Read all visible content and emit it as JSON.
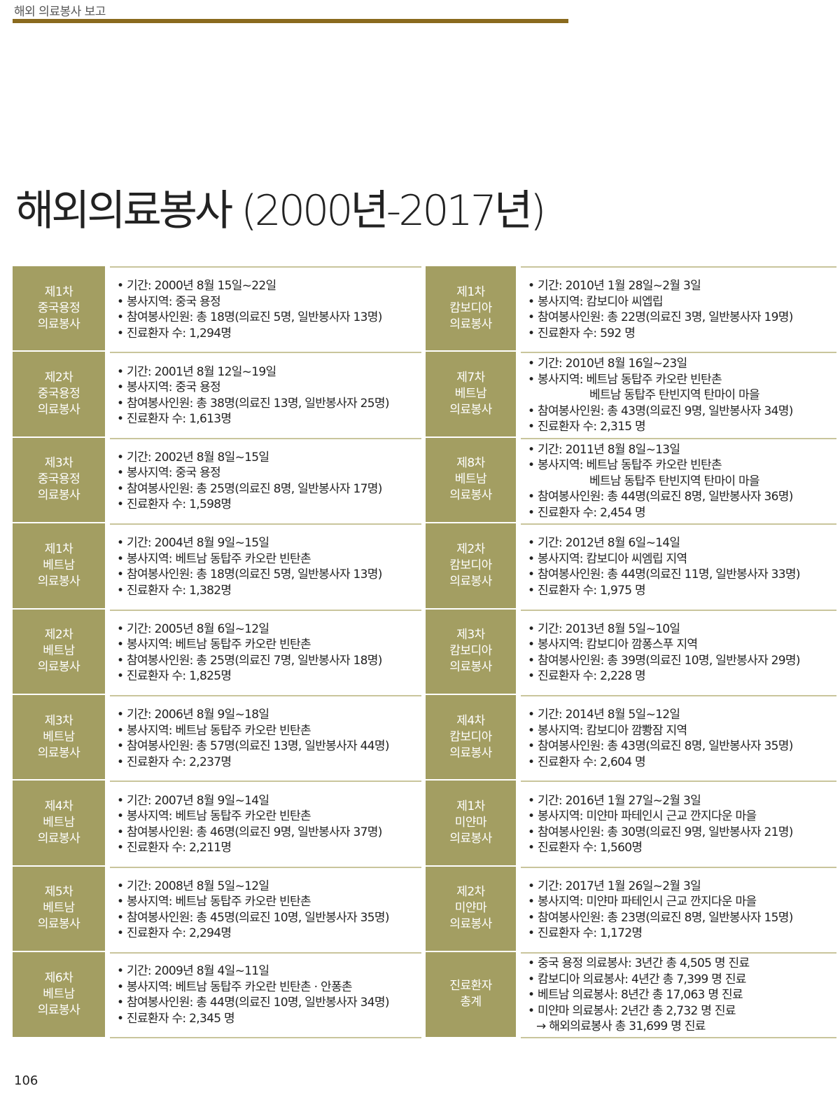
{
  "running_header": "해외 의료봉사 보고",
  "title": "해외의료봉사 (2000년-2017년)",
  "colors": {
    "label_bg": "#a39e62",
    "header_rule": "#8a6a1e",
    "row_rule": "#c9c59c"
  },
  "left": [
    {
      "label": [
        "제1차",
        "중국용정",
        "의료봉사"
      ],
      "lines": [
        {
          "t": "기간: 2000년 8월 15일~22일",
          "k": "b"
        },
        {
          "t": "봉사지역: 중국 용정",
          "k": "b"
        },
        {
          "t": "참여봉사인원: 총 18명(의료진 5명, 일반봉사자 13명)",
          "k": "b"
        },
        {
          "t": "진료환자 수: 1,294명",
          "k": "b"
        }
      ]
    },
    {
      "label": [
        "제2차",
        "중국용정",
        "의료봉사"
      ],
      "lines": [
        {
          "t": "기간: 2001년 8월 12일~19일",
          "k": "b"
        },
        {
          "t": "봉사지역: 중국 용정",
          "k": "b"
        },
        {
          "t": "참여봉사인원: 총 38명(의료진 13명, 일반봉사자 25명)",
          "k": "b"
        },
        {
          "t": "진료환자 수: 1,613명",
          "k": "b"
        }
      ]
    },
    {
      "label": [
        "제3차",
        "중국용정",
        "의료봉사"
      ],
      "lines": [
        {
          "t": "기간: 2002년 8월 8일~15일",
          "k": "b"
        },
        {
          "t": "봉사지역: 중국 용정",
          "k": "b"
        },
        {
          "t": "참여봉사인원: 총 25명(의료진 8명, 일반봉사자 17명)",
          "k": "b"
        },
        {
          "t": "진료환자 수: 1,598명",
          "k": "b"
        }
      ]
    },
    {
      "label": [
        "제1차",
        "베트남",
        "의료봉사"
      ],
      "lines": [
        {
          "t": "기간: 2004년 8월 9일~15일",
          "k": "b"
        },
        {
          "t": "봉사지역: 베트남 동탑주 카오란 빈탄촌",
          "k": "b"
        },
        {
          "t": "참여봉사인원: 총 18명(의료진 5명, 일반봉사자 13명)",
          "k": "b"
        },
        {
          "t": "진료환자 수: 1,382명",
          "k": "b"
        }
      ]
    },
    {
      "label": [
        "제2차",
        "베트남",
        "의료봉사"
      ],
      "lines": [
        {
          "t": "기간: 2005년 8월 6일~12일",
          "k": "b"
        },
        {
          "t": "봉사지역: 베트남 동탑주 카오란 빈탄촌",
          "k": "b"
        },
        {
          "t": "참여봉사인원: 총 25명(의료진 7명, 일반봉사자 18명)",
          "k": "b"
        },
        {
          "t": "진료환자 수: 1,825명",
          "k": "b"
        }
      ]
    },
    {
      "label": [
        "제3차",
        "베트남",
        "의료봉사"
      ],
      "lines": [
        {
          "t": "기간: 2006년 8월 9일~18일",
          "k": "b"
        },
        {
          "t": "봉사지역: 베트남 동탑주 카오란 빈탄촌",
          "k": "b"
        },
        {
          "t": "참여봉사인원: 총 57명(의료진 13명, 일반봉사자 44명)",
          "k": "b"
        },
        {
          "t": "진료환자 수: 2,237명",
          "k": "b"
        }
      ]
    },
    {
      "label": [
        "제4차",
        "베트남",
        "의료봉사"
      ],
      "lines": [
        {
          "t": "기간: 2007년 8월 9일~14일",
          "k": "b"
        },
        {
          "t": "봉사지역: 베트남 동탑주 카오란 빈탄촌",
          "k": "b"
        },
        {
          "t": "참여봉사인원: 총 46명(의료진 9명, 일반봉사자 37명)",
          "k": "b"
        },
        {
          "t": "진료환자 수: 2,211명",
          "k": "b"
        }
      ]
    },
    {
      "label": [
        "제5차",
        "베트남",
        "의료봉사"
      ],
      "lines": [
        {
          "t": "기간: 2008년 8월 5일~12일",
          "k": "b"
        },
        {
          "t": "봉사지역: 베트남 동탑주 카오란 빈탄촌",
          "k": "b"
        },
        {
          "t": "참여봉사인원: 총 45명(의료진 10명, 일반봉사자 35명)",
          "k": "b"
        },
        {
          "t": "진료환자 수: 2,294명",
          "k": "b"
        }
      ]
    },
    {
      "label": [
        "제6차",
        "베트남",
        "의료봉사"
      ],
      "lines": [
        {
          "t": "기간: 2009년 8월 4일~11일",
          "k": "b"
        },
        {
          "t": "봉사지역: 베트남 동탑주 카오란 빈탄촌 · 안퐁촌",
          "k": "b"
        },
        {
          "t": "참여봉사인원: 총 44명(의료진 10명, 일반봉사자 34명)",
          "k": "b"
        },
        {
          "t": "진료환자 수: 2,345 명",
          "k": "b"
        }
      ]
    }
  ],
  "right": [
    {
      "label": [
        "제1차",
        "캄보디아",
        "의료봉사"
      ],
      "lines": [
        {
          "t": "기간: 2010년 1월 28일~2월 3일",
          "k": "b"
        },
        {
          "t": "봉사지역: 캄보디아 씨엡립",
          "k": "b"
        },
        {
          "t": "참여봉사인원: 총 22명(의료진 3명, 일반봉사자 19명)",
          "k": "b"
        },
        {
          "t": "진료환자 수: 592 명",
          "k": "b"
        }
      ]
    },
    {
      "label": [
        "제7차",
        "베트남",
        "의료봉사"
      ],
      "lines": [
        {
          "t": "기간: 2010년 8월 16일~23일",
          "k": "b"
        },
        {
          "t": "봉사지역: 베트남 동탑주 카오란 빈탄촌",
          "k": "b"
        },
        {
          "t": "베트남 동탑주 탄빈지역 탄마이 마을",
          "k": "ind"
        },
        {
          "t": "참여봉사인원: 총 43명(의료진 9명, 일반봉사자 34명)",
          "k": "b"
        },
        {
          "t": "진료환자 수: 2,315 명",
          "k": "b"
        }
      ]
    },
    {
      "label": [
        "제8차",
        "베트남",
        "의료봉사"
      ],
      "lines": [
        {
          "t": "기간: 2011년 8월 8일~13일",
          "k": "b"
        },
        {
          "t": "봉사지역: 베트남 동탑주 카오란 빈탄촌",
          "k": "b"
        },
        {
          "t": "베트남 동탑주 탄빈지역 탄마이 마을",
          "k": "ind"
        },
        {
          "t": "참여봉사인원: 총 44명(의료진 8명, 일반봉사자 36명)",
          "k": "b"
        },
        {
          "t": "진료환자 수: 2,454 명",
          "k": "b"
        }
      ]
    },
    {
      "label": [
        "제2차",
        "캄보디아",
        "의료봉사"
      ],
      "lines": [
        {
          "t": "기간: 2012년 8월 6일~14일",
          "k": "b"
        },
        {
          "t": "봉사지역: 캄보디아 씨엠립 지역",
          "k": "b"
        },
        {
          "t": "참여봉사인원: 총 44명(의료진 11명, 일반봉사자 33명)",
          "k": "b"
        },
        {
          "t": "진료환자 수: 1,975 명",
          "k": "b"
        }
      ]
    },
    {
      "label": [
        "제3차",
        "캄보디아",
        "의료봉사"
      ],
      "lines": [
        {
          "t": "기간: 2013년 8월 5일~10일",
          "k": "b"
        },
        {
          "t": "봉사지역: 캄보디아 깜퐁스푸 지역",
          "k": "b"
        },
        {
          "t": "참여봉사인원: 총 39명(의료진 10명, 일반봉사자 29명)",
          "k": "b"
        },
        {
          "t": "진료환자 수: 2,228 명",
          "k": "b"
        }
      ]
    },
    {
      "label": [
        "제4차",
        "캄보디아",
        "의료봉사"
      ],
      "lines": [
        {
          "t": "기간: 2014년 8월 5일~12일",
          "k": "b"
        },
        {
          "t": "봉사지역: 캄보디아 깜뽱잠 지역",
          "k": "b"
        },
        {
          "t": "참여봉사인원: 총 43명(의료진 8명, 일반봉사자 35명)",
          "k": "b"
        },
        {
          "t": "진료환자 수: 2,604 명",
          "k": "b"
        }
      ]
    },
    {
      "label": [
        "제1차",
        "미얀마",
        "의료봉사"
      ],
      "lines": [
        {
          "t": "기간: 2016년 1월 27일~2월 3일",
          "k": "b"
        },
        {
          "t": "봉사지역: 미얀마 파테인시 근교 깐지다운 마을",
          "k": "b"
        },
        {
          "t": "참여봉사인원: 총 30명(의료진 9명, 일반봉사자 21명)",
          "k": "b"
        },
        {
          "t": "진료환자 수: 1,560명",
          "k": "b"
        }
      ]
    },
    {
      "label": [
        "제2차",
        "미얀마",
        "의료봉사"
      ],
      "lines": [
        {
          "t": "기간: 2017년 1월 26일~2월 3일",
          "k": "b"
        },
        {
          "t": "봉사지역: 미얀마 파테인시 근교 깐지다운 마을",
          "k": "b"
        },
        {
          "t": "참여봉사인원: 총 23명(의료진 8명, 일반봉사자 15명)",
          "k": "b"
        },
        {
          "t": "진료환자 수: 1,172명",
          "k": "b"
        }
      ]
    },
    {
      "label": [
        "진료환자",
        "총계"
      ],
      "lines": [
        {
          "t": "중국 용정 의료봉사: 3년간 총 4,505 명 진료",
          "k": "b"
        },
        {
          "t": "캄보디아 의료봉사: 4년간 총 7,399 명 진료",
          "k": "b"
        },
        {
          "t": "베트남 의료봉사: 8년간 총 17,063 명 진료",
          "k": "b"
        },
        {
          "t": "미얀마 의료봉사: 2년간 총 2,732 명 진료",
          "k": "b"
        },
        {
          "t": "→ 해외의료봉사 총 31,699 명 진료",
          "k": "arr"
        }
      ]
    }
  ],
  "page_number": "106"
}
